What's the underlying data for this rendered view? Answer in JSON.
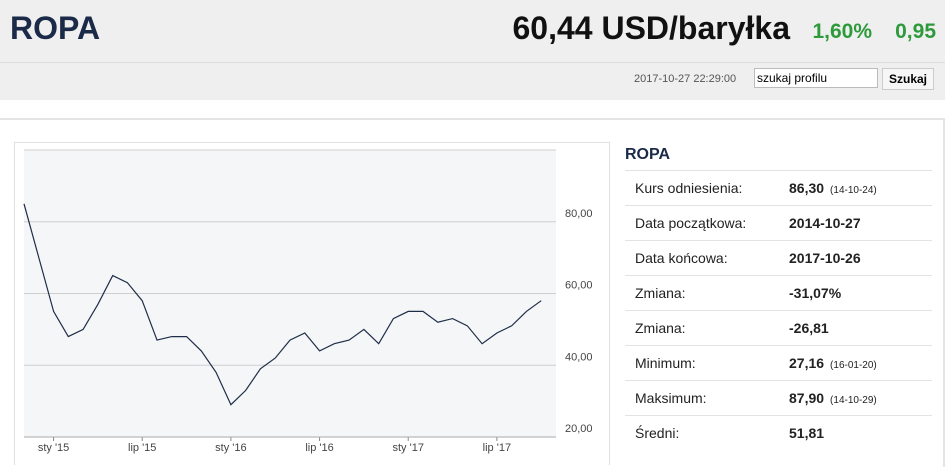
{
  "header": {
    "title": "ROPA",
    "price": "60,44 USD/baryłka",
    "change_pct": "1,60%",
    "change_abs": "0,95",
    "timestamp": "2017-10-27 22:29:00",
    "search_placeholder": "szukaj profilu",
    "search_button": "Szukaj"
  },
  "chart_data": {
    "type": "line",
    "color": "#1f2d47",
    "x": [
      "2014-11",
      "2014-12",
      "2015-01",
      "2015-02",
      "2015-03",
      "2015-04",
      "2015-05",
      "2015-06",
      "2015-07",
      "2015-08",
      "2015-09",
      "2015-10",
      "2015-11",
      "2015-12",
      "2016-01",
      "2016-02",
      "2016-03",
      "2016-04",
      "2016-05",
      "2016-06",
      "2016-07",
      "2016-08",
      "2016-09",
      "2016-10",
      "2016-11",
      "2016-12",
      "2017-01",
      "2017-02",
      "2017-03",
      "2017-04",
      "2017-05",
      "2017-06",
      "2017-07",
      "2017-08",
      "2017-09",
      "2017-10"
    ],
    "values": [
      85,
      70,
      55,
      48,
      50,
      57,
      65,
      63,
      58,
      47,
      48,
      48,
      44,
      38,
      29,
      33,
      39,
      42,
      47,
      49,
      44,
      46,
      47,
      50,
      46,
      53,
      55,
      55,
      52,
      53,
      51,
      46,
      49,
      51,
      55,
      58
    ],
    "xlim": [
      "2014-11",
      "2017-11"
    ],
    "xticks": [
      {
        "value": "2015-01",
        "label": "sty '15"
      },
      {
        "value": "2015-07",
        "label": "lip '15"
      },
      {
        "value": "2016-01",
        "label": "sty '16"
      },
      {
        "value": "2016-07",
        "label": "lip '16"
      },
      {
        "value": "2017-01",
        "label": "sty '17"
      },
      {
        "value": "2017-07",
        "label": "lip '17"
      }
    ],
    "ylim": [
      20,
      100
    ],
    "yticks": [
      {
        "value": 20,
        "label": "20,00"
      },
      {
        "value": 40,
        "label": "40,00"
      },
      {
        "value": 60,
        "label": "60,00"
      },
      {
        "value": 80,
        "label": "80,00"
      },
      {
        "value": 100,
        "label": ""
      }
    ],
    "grid": true
  },
  "table": {
    "title": "ROPA",
    "rows": [
      {
        "label": "Kurs odniesienia:",
        "value": "86,30",
        "note": "(14-10-24)"
      },
      {
        "label": "Data początkowa:",
        "value": "2014-10-27"
      },
      {
        "label": "Data końcowa:",
        "value": "2017-10-26"
      },
      {
        "label": "Zmiana:",
        "value": "-31,07%"
      },
      {
        "label": "Zmiana:",
        "value": "-26,81"
      },
      {
        "label": "Minimum:",
        "value": "27,16",
        "note": "(16-01-20)"
      },
      {
        "label": "Maksimum:",
        "value": "87,90",
        "note": "(14-10-29)"
      },
      {
        "label": "Średni:",
        "value": "51,81"
      }
    ]
  }
}
